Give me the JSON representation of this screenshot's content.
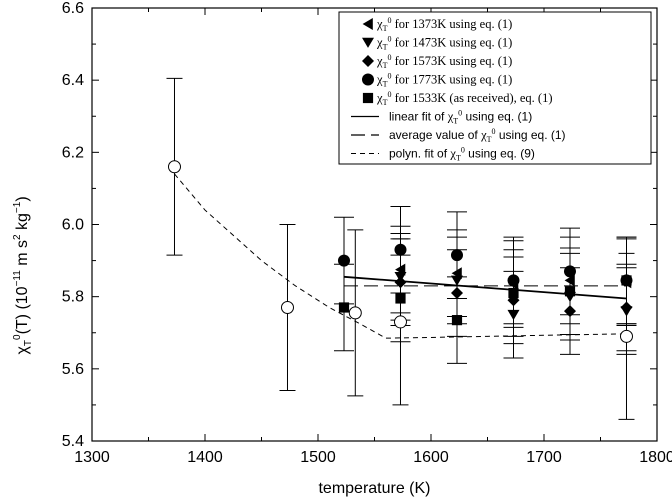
{
  "chart_data": {
    "type": "scatter",
    "title": "",
    "xlabel": "temperature (K)",
    "ylabel": "χT0(T) (10−11 m s2 kg−1)",
    "ylabel_parts": {
      "sym": "χ",
      "sub": "T",
      "sup": "0",
      "body": "(T) (10",
      "exp1": "−11",
      "units": " m s",
      "exp2": "2",
      "units2": " kg",
      "exp3": "−1",
      "close": ")"
    },
    "xlim": [
      1300,
      1800
    ],
    "ylim": [
      5.4,
      6.6
    ],
    "xticks": [
      1300,
      1400,
      1500,
      1600,
      1700,
      1800
    ],
    "xtick_labels": [
      "1300",
      "1400",
      "1500",
      "1600",
      "1700",
      "1800"
    ],
    "yticks": [
      5.4,
      5.6,
      5.8,
      6.0,
      6.2,
      6.4,
      6.6
    ],
    "ytick_labels": [
      "5.4",
      "5.6",
      "5.8",
      "6.0",
      "6.2",
      "6.4",
      "6.6"
    ],
    "grid": false,
    "legend_position": "top-right",
    "legend": [
      {
        "marker": "triangle-left",
        "sym": "χ",
        "sub": "T",
        "sup": "0",
        "text": " for 1373K using eq. (1)"
      },
      {
        "marker": "triangle-down",
        "sym": "χ",
        "sub": "T",
        "sup": "0",
        "text": " for 1473K using eq. (1)"
      },
      {
        "marker": "diamond",
        "sym": "χ",
        "sub": "T",
        "sup": "0",
        "text": " for 1573K using eq. (1)"
      },
      {
        "marker": "circle",
        "sym": "χ",
        "sub": "T",
        "sup": "0",
        "text": " for 1773K using eq. (1)"
      },
      {
        "marker": "square",
        "sym": "χ",
        "sub": "T",
        "sup": "0",
        "text": " for 1533K (as received), eq. (1)"
      },
      {
        "marker": "solid-line",
        "prefix": "linear fit of ",
        "sym": "χ",
        "sub": "T",
        "sup": "0",
        "text": " using eq. (1)"
      },
      {
        "marker": "long-dash",
        "prefix": "average value of  ",
        "sym": "χ",
        "sub": "T",
        "sup": "0",
        "text": " using eq. (1)"
      },
      {
        "marker": "short-dash",
        "prefix": "polyn. fit of ",
        "sym": "χ",
        "sub": "T",
        "sup": "0",
        "text": " using eq. (9)"
      }
    ],
    "series": [
      {
        "marker": "circle-open",
        "x": [
          1373,
          1473,
          1533,
          1573,
          1773
        ],
        "y": [
          6.16,
          5.77,
          5.755,
          5.73,
          5.69
        ],
        "err": [
          0.245,
          0.23,
          0.23,
          0.23,
          0.23
        ]
      },
      {
        "marker": "triangle-left",
        "x": [
          1573,
          1623,
          1673,
          1723,
          1773
        ],
        "y": [
          5.875,
          5.865,
          5.835,
          5.845,
          5.84
        ],
        "err": [
          0.12,
          0.12,
          0.12,
          0.12,
          0.12
        ]
      },
      {
        "marker": "triangle-down",
        "x": [
          1573,
          1623,
          1673,
          1723,
          1773
        ],
        "y": [
          5.855,
          5.845,
          5.75,
          5.8,
          5.76
        ],
        "err": [
          0.12,
          0.12,
          0.12,
          0.12,
          0.12
        ]
      },
      {
        "marker": "diamond",
        "x": [
          1573,
          1623,
          1673,
          1723,
          1773
        ],
        "y": [
          5.84,
          5.81,
          5.79,
          5.76,
          5.77
        ],
        "err": [
          0.12,
          0.12,
          0.12,
          0.12,
          0.12
        ]
      },
      {
        "marker": "circle",
        "x": [
          1523,
          1573,
          1623,
          1673,
          1723,
          1773
        ],
        "y": [
          5.9,
          5.93,
          5.915,
          5.845,
          5.87,
          5.845
        ],
        "err": [
          0.12,
          0.12,
          0.12,
          0.12,
          0.12,
          0.12
        ]
      },
      {
        "marker": "square",
        "x": [
          1523,
          1573,
          1623,
          1673,
          1723,
          1773
        ],
        "y": [
          5.77,
          5.795,
          5.735,
          5.81,
          5.815,
          5.845
        ],
        "err": [
          0.12,
          0.12,
          0.12,
          0.12,
          0.12,
          0.12
        ]
      }
    ],
    "lines": [
      {
        "style": "solid",
        "x": [
          1523,
          1773
        ],
        "y": [
          5.855,
          5.795
        ]
      },
      {
        "style": "long-dash",
        "x": [
          1523,
          1773
        ],
        "y": [
          5.83,
          5.83
        ]
      },
      {
        "style": "short-dash",
        "x": [
          1373,
          1400,
          1450,
          1480,
          1510,
          1540,
          1560,
          1600,
          1650,
          1700,
          1773
        ],
        "y": [
          6.14,
          6.04,
          5.9,
          5.83,
          5.77,
          5.72,
          5.685,
          5.687,
          5.69,
          5.693,
          5.697
        ]
      }
    ]
  }
}
